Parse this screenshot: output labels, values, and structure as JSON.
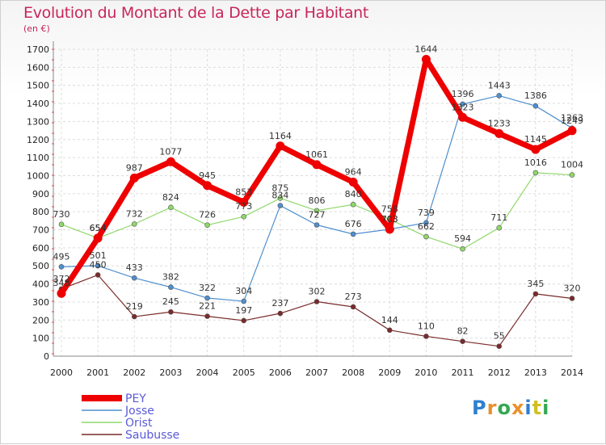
{
  "header": {
    "title": "Evolution du Montant de la Dette par Habitant",
    "subtitle": "(en €)"
  },
  "logo": {
    "text": "Proxiti",
    "colors": [
      "#2e7fd0",
      "#e8912b",
      "#34a853",
      "#e8912b",
      "#2e7fd0",
      "#d0c020",
      "#34a853"
    ]
  },
  "chart_data": {
    "type": "line",
    "categories": [
      "2000",
      "2001",
      "2002",
      "2003",
      "2004",
      "2005",
      "2006",
      "2007",
      "2008",
      "2009",
      "2010",
      "2011",
      "2012",
      "2013",
      "2014"
    ],
    "ylim": [
      0,
      1700
    ],
    "yticks": [
      0,
      100,
      200,
      300,
      400,
      500,
      600,
      700,
      800,
      900,
      1000,
      1100,
      1200,
      1300,
      1400,
      1500,
      1600,
      1700
    ],
    "grid": true,
    "legend_position": "bottom-left",
    "series": [
      {
        "name": "PEY",
        "color": "#ee0000",
        "values": [
          348,
          654,
          987,
          1077,
          945,
          853,
          1164,
          1061,
          964,
          703,
          1644,
          1323,
          1233,
          1145,
          1249
        ]
      },
      {
        "name": "Josse",
        "color": "#4f8fcf",
        "values": [
          495,
          501,
          433,
          382,
          322,
          304,
          834,
          727,
          676,
          703,
          739,
          1396,
          1443,
          1386,
          1263
        ]
      },
      {
        "name": "Orist",
        "color": "#8fd86a",
        "values": [
          730,
          654,
          732,
          824,
          726,
          773,
          875,
          806,
          840,
          758,
          662,
          594,
          711,
          1016,
          1004
        ]
      },
      {
        "name": "Saubusse",
        "color": "#7a2a2a",
        "values": [
          372,
          450,
          219,
          245,
          221,
          197,
          237,
          302,
          273,
          144,
          110,
          82,
          55,
          345,
          320
        ]
      }
    ]
  }
}
